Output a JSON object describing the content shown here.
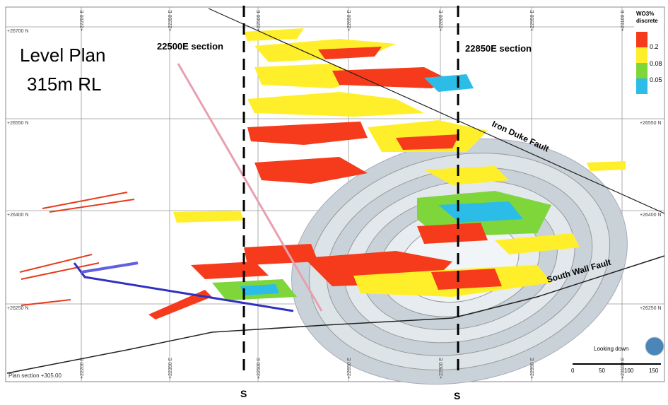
{
  "title": {
    "line1": "Level Plan",
    "line2": "315m RL"
  },
  "sections": [
    "22500E section",
    "22850E section"
  ],
  "section_marks": [
    "S",
    "S"
  ],
  "faults": [
    "Iron Duke Fault",
    "South Wall Fault"
  ],
  "legend": {
    "title": "WO3%",
    "subtitle": "discrete",
    "items": [
      "0.2",
      "0.08",
      "0.05"
    ]
  },
  "grid": {
    "north": [
      "+26700 N",
      "+26550 N",
      "+26400 N",
      "+26250 N"
    ],
    "east": [
      "+22200 E",
      "+22350 E",
      "+22500 E",
      "+22650 E",
      "+22800 E",
      "+22950 E",
      "+23100 E"
    ]
  },
  "plan_section": "Plan section +305.00",
  "view": "Looking down",
  "scale": [
    "0",
    "50",
    "100",
    "150"
  ]
}
